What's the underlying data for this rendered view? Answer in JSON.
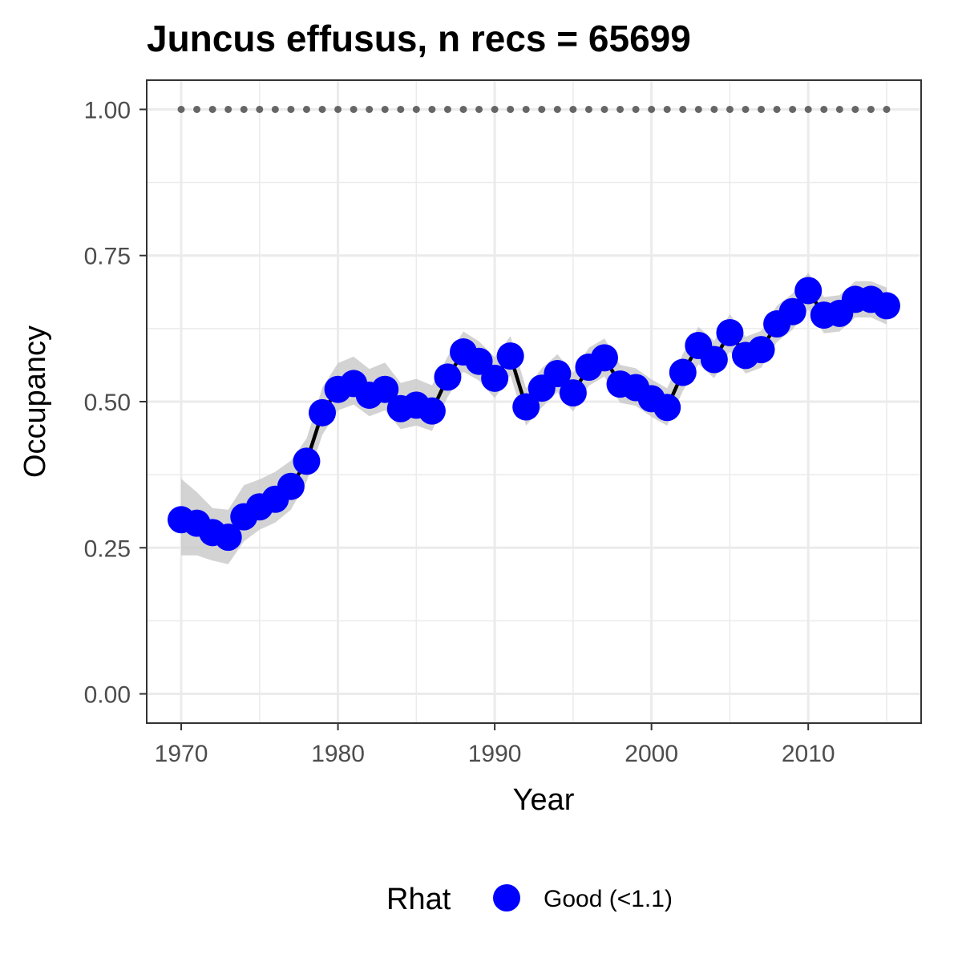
{
  "chart_data": {
    "type": "line",
    "title": "Juncus effusus, n recs = 65699",
    "xlabel": "Year",
    "ylabel": "Occupancy",
    "xlim": [
      1967.8,
      2017.2
    ],
    "ylim": [
      -0.05,
      1.05
    ],
    "x_ticks": [
      1970,
      1980,
      1990,
      2000,
      2010
    ],
    "x_tick_labels": [
      "1970",
      "1980",
      "1990",
      "2000",
      "2010"
    ],
    "y_ticks": [
      0,
      0.25,
      0.5,
      0.75,
      1.0
    ],
    "y_tick_labels": [
      "0.00",
      "0.25",
      "0.50",
      "0.75",
      "1.00"
    ],
    "grid": true,
    "legend_position": "bottom",
    "legend": {
      "title": "Rhat",
      "entries": [
        {
          "label": "Good (<1.1)",
          "color": "#0000ff"
        }
      ]
    },
    "colors": {
      "points": "#0000ff",
      "line": "#000000",
      "ribbon": "#c8c8c8",
      "reference": "#666666",
      "panel_border": "#333333",
      "grid": "#ebebeb"
    },
    "reference_line": {
      "y": 1.0,
      "style": "dotted"
    },
    "x": [
      1970,
      1971,
      1972,
      1973,
      1974,
      1975,
      1976,
      1977,
      1978,
      1979,
      1980,
      1981,
      1982,
      1983,
      1984,
      1985,
      1986,
      1987,
      1988,
      1989,
      1990,
      1991,
      1992,
      1993,
      1994,
      1995,
      1996,
      1997,
      1998,
      1999,
      2000,
      2001,
      2002,
      2003,
      2004,
      2005,
      2006,
      2007,
      2008,
      2009,
      2010,
      2011,
      2012,
      2013,
      2014,
      2015
    ],
    "series": [
      {
        "name": "Good (<1.1)",
        "values": [
          0.298,
          0.292,
          0.276,
          0.268,
          0.303,
          0.32,
          0.333,
          0.355,
          0.398,
          0.481,
          0.521,
          0.531,
          0.511,
          0.521,
          0.488,
          0.494,
          0.484,
          0.542,
          0.585,
          0.569,
          0.54,
          0.578,
          0.491,
          0.523,
          0.548,
          0.515,
          0.559,
          0.575,
          0.53,
          0.524,
          0.505,
          0.49,
          0.55,
          0.596,
          0.572,
          0.618,
          0.579,
          0.589,
          0.633,
          0.654,
          0.69,
          0.648,
          0.651,
          0.675,
          0.675,
          0.664
        ],
        "lower": [
          0.237,
          0.237,
          0.228,
          0.222,
          0.261,
          0.281,
          0.293,
          0.315,
          0.363,
          0.443,
          0.485,
          0.495,
          0.475,
          0.485,
          0.453,
          0.459,
          0.45,
          0.508,
          0.551,
          0.536,
          0.506,
          0.545,
          0.459,
          0.49,
          0.516,
          0.483,
          0.527,
          0.543,
          0.498,
          0.493,
          0.474,
          0.459,
          0.518,
          0.564,
          0.54,
          0.586,
          0.548,
          0.558,
          0.602,
          0.623,
          0.658,
          0.617,
          0.62,
          0.644,
          0.644,
          0.632
        ],
        "upper": [
          0.368,
          0.345,
          0.318,
          0.315,
          0.357,
          0.367,
          0.38,
          0.399,
          0.437,
          0.524,
          0.566,
          0.577,
          0.556,
          0.567,
          0.532,
          0.539,
          0.528,
          0.577,
          0.62,
          0.603,
          0.576,
          0.612,
          0.523,
          0.557,
          0.581,
          0.549,
          0.592,
          0.608,
          0.563,
          0.557,
          0.538,
          0.523,
          0.582,
          0.628,
          0.604,
          0.65,
          0.611,
          0.621,
          0.664,
          0.685,
          0.721,
          0.679,
          0.682,
          0.706,
          0.706,
          0.695
        ]
      }
    ]
  }
}
